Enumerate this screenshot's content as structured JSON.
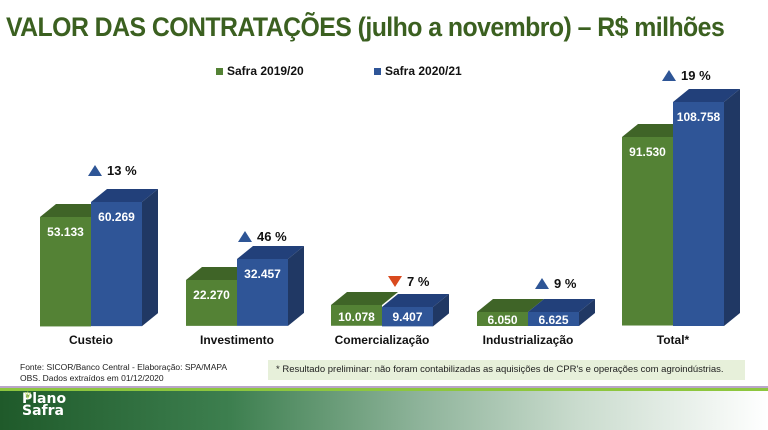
{
  "title": "VALOR DAS CONTRATAÇÕES (julho a novembro) – R$ milhões",
  "legend": [
    {
      "label": "Safra 2019/20",
      "color": "#548235"
    },
    {
      "label": "Safra 2020/21",
      "color": "#2f5597"
    }
  ],
  "chart_data": {
    "type": "bar",
    "title": "VALOR DAS CONTRATAÇÕES (julho a novembro) – R$ milhões",
    "xlabel": "",
    "ylabel": "R$ milhões",
    "categories": [
      "Custeio",
      "Investimento",
      "Comercialização",
      "Industrialização",
      "Total*"
    ],
    "series": [
      {
        "name": "Safra 2019/20",
        "values": [
          53133,
          22270,
          10078,
          6050,
          91530
        ],
        "labels": [
          "53.133",
          "22.270",
          "10.078",
          "6.050",
          "91.530"
        ]
      },
      {
        "name": "Safra 2020/21",
        "values": [
          60269,
          32457,
          9407,
          6625,
          108758
        ],
        "labels": [
          "60.269",
          "32.457",
          "9.407",
          "6.625",
          "108.758"
        ]
      }
    ],
    "changes": [
      {
        "category": "Custeio",
        "direction": "up",
        "label": "13 %"
      },
      {
        "category": "Investimento",
        "direction": "up",
        "label": "46 %"
      },
      {
        "category": "Comercialização",
        "direction": "down",
        "label": "7 %"
      },
      {
        "category": "Industrialização",
        "direction": "up",
        "label": "9 %"
      },
      {
        "category": "Total*",
        "direction": "up",
        "label": "19 %"
      }
    ],
    "legend_position": "top",
    "grid": false
  },
  "source": {
    "line1": "Fonte: SICOR/Banco Central - Elaboração: SPA/MAPA",
    "line2": "OBS. Dados extraídos em 01/12/2020"
  },
  "note": "* Resultado preliminar: não foram contabilizadas as aquisições de CPR's e operações com agroindústrias.",
  "logo": {
    "line1": "Plano",
    "line2": "Safra"
  },
  "colors": {
    "green_front": "#548235",
    "green_top": "#3f6427",
    "blue_front": "#2f5597",
    "blue_top": "#22407a",
    "blue_side": "#203864",
    "title": "#3b6020"
  }
}
